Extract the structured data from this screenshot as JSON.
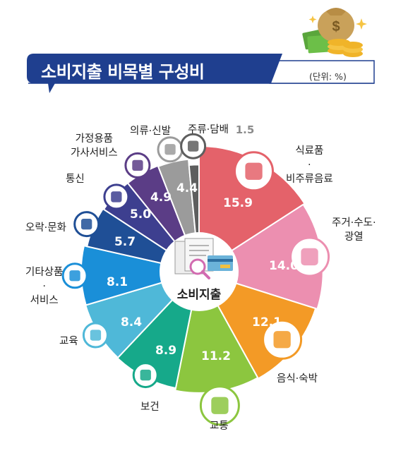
{
  "header": {
    "title": "소비지출 비목별 구성비",
    "unit": "(단위: %)"
  },
  "center": {
    "label": "소비지출"
  },
  "chart_data": {
    "type": "pie",
    "title": "소비지출 비목별 구성비",
    "unit": "(단위: %)",
    "slices": [
      {
        "label": "식료품·비주류음료",
        "label_lines": [
          "식료품",
          "·",
          "비주류음료"
        ],
        "value": 15.9,
        "value_text": "15.9",
        "color": "#e4626a",
        "icon": "grocery-icon"
      },
      {
        "label": "주거·수도·광열",
        "label_lines": [
          "주거·수도·",
          "광열"
        ],
        "value": 14.0,
        "value_text": "14.0",
        "color": "#ec8fb0",
        "icon": "house-icon"
      },
      {
        "label": "음식·숙박",
        "label_lines": [
          "음식·숙박"
        ],
        "value": 12.1,
        "value_text": "12.1",
        "color": "#f39a26",
        "icon": "food-plate-icon"
      },
      {
        "label": "교통",
        "label_lines": [
          "교통"
        ],
        "value": 11.2,
        "value_text": "11.2",
        "color": "#8cc63f",
        "icon": "car-icon"
      },
      {
        "label": "보건",
        "label_lines": [
          "보건"
        ],
        "value": 8.9,
        "value_text": "8.9",
        "color": "#16a98a",
        "icon": "first-aid-icon"
      },
      {
        "label": "교육",
        "label_lines": [
          "교육"
        ],
        "value": 8.4,
        "value_text": "8.4",
        "color": "#4fb8d8",
        "icon": "graduation-icon"
      },
      {
        "label": "기타상품·서비스",
        "label_lines": [
          "기타상품",
          "·",
          "서비스"
        ],
        "value": 8.1,
        "value_text": "8.1",
        "color": "#1a8fd8",
        "icon": "scissors-icon"
      },
      {
        "label": "오락·문화",
        "label_lines": [
          "오락·문화"
        ],
        "value": 5.7,
        "value_text": "5.7",
        "color": "#1f4f96",
        "icon": "popcorn-icon"
      },
      {
        "label": "통신",
        "label_lines": [
          "통신"
        ],
        "value": 5.0,
        "value_text": "5.0",
        "color": "#3d3f8f",
        "icon": "phone-icon"
      },
      {
        "label": "가정용품·가사서비스",
        "label_lines": [
          "가정용품",
          "가사서비스"
        ],
        "value": 4.9,
        "value_text": "4.9",
        "color": "#5b3d86",
        "icon": "appliance-icon"
      },
      {
        "label": "의류·신발",
        "label_lines": [
          "의류·신발"
        ],
        "value": 4.4,
        "value_text": "4.4",
        "color": "#9b9b9b",
        "icon": "shirt-icon"
      },
      {
        "label": "주류·담배",
        "label_lines": [
          "주류·담배"
        ],
        "value": 1.5,
        "value_text": "1.5",
        "color": "#5e5e5e",
        "icon": "bottle-icon"
      }
    ]
  }
}
